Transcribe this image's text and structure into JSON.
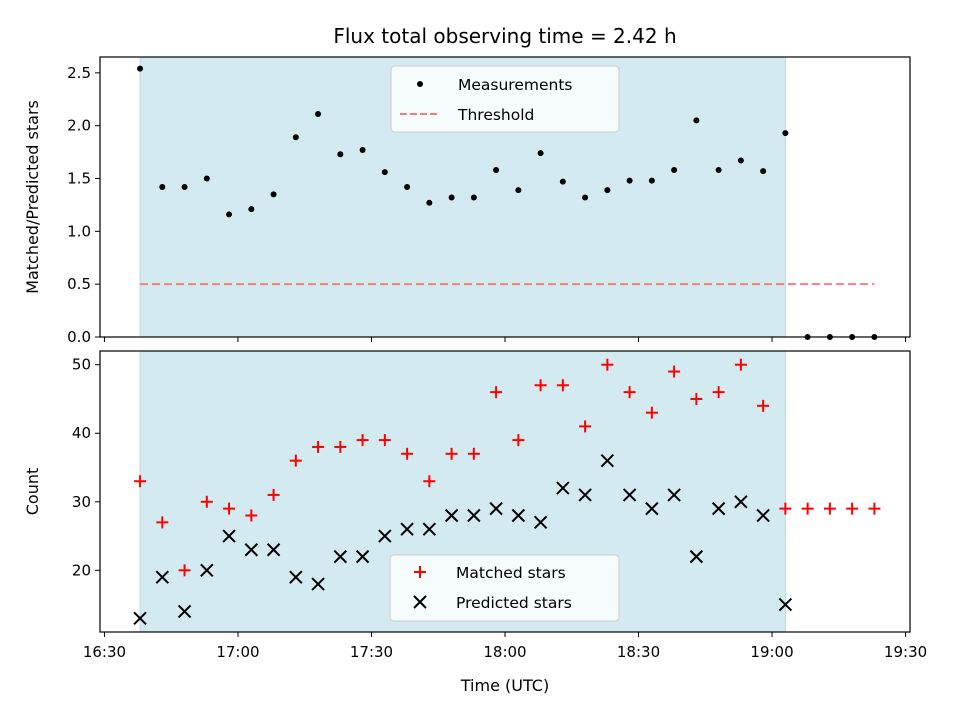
{
  "chart_data": [
    {
      "type": "scatter",
      "title": "Flux total observing time = 2.42 h",
      "xlabel": "",
      "ylabel": "Matched/Predicted stars",
      "ylim": [
        0,
        2.65
      ],
      "yticks": [
        "0.0",
        "0.5",
        "1.0",
        "1.5",
        "2.0",
        "2.5"
      ],
      "ytick_values": [
        0,
        0.5,
        1.0,
        1.5,
        2.0,
        2.5
      ],
      "xlim_minutes_since_16_00": [
        29,
        211
      ],
      "shaded_interval": [
        "16:38",
        "19:03"
      ],
      "shade_color": "#d3eaf0",
      "legend": {
        "placement": "upper-center",
        "entries": [
          "Measurements",
          "Threshold"
        ]
      },
      "series": [
        {
          "name": "Measurements",
          "marker": "dot",
          "color": "#000000",
          "x": [
            "16:38",
            "16:43",
            "16:48",
            "16:53",
            "16:58",
            "17:03",
            "17:08",
            "17:13",
            "17:18",
            "17:23",
            "17:28",
            "17:33",
            "17:38",
            "17:43",
            "17:48",
            "17:53",
            "17:58",
            "18:03",
            "18:08",
            "18:13",
            "18:18",
            "18:23",
            "18:28",
            "18:33",
            "18:38",
            "18:43",
            "18:48",
            "18:53",
            "18:58",
            "19:03",
            "19:08",
            "19:13",
            "19:18",
            "19:23"
          ],
          "values": [
            2.54,
            1.42,
            1.42,
            1.5,
            1.16,
            1.21,
            1.35,
            1.89,
            2.11,
            1.73,
            1.77,
            1.56,
            1.42,
            1.27,
            1.32,
            1.32,
            1.58,
            1.39,
            1.74,
            1.47,
            1.32,
            1.39,
            1.48,
            1.48,
            1.58,
            2.05,
            1.58,
            1.67,
            1.57,
            1.93,
            0.0,
            0.0,
            0.0,
            0.0
          ]
        },
        {
          "name": "Threshold",
          "marker": "dashed-line",
          "color": "#f08080",
          "x": [
            "16:38",
            "19:23"
          ],
          "values": [
            0.5,
            0.5
          ]
        }
      ]
    },
    {
      "type": "scatter",
      "title": "",
      "xlabel": "Time (UTC)",
      "ylabel": "Count",
      "ylim": [
        11,
        52
      ],
      "yticks": [
        "20",
        "30",
        "40",
        "50"
      ],
      "ytick_values": [
        20,
        30,
        40,
        50
      ],
      "xticks": [
        "16:30",
        "17:00",
        "17:30",
        "18:00",
        "18:30",
        "19:00",
        "19:30"
      ],
      "xtick_minutes_since_16_00": [
        30,
        60,
        90,
        120,
        150,
        180,
        210
      ],
      "xlim_minutes_since_16_00": [
        29,
        211
      ],
      "shaded_interval": [
        "16:38",
        "19:03"
      ],
      "shade_color": "#d3eaf0",
      "legend": {
        "placement": "lower-center",
        "entries": [
          "Matched stars",
          "Predicted stars"
        ]
      },
      "series": [
        {
          "name": "Matched stars",
          "marker": "plus",
          "color": "#ff0000",
          "x": [
            "16:38",
            "16:43",
            "16:48",
            "16:53",
            "16:58",
            "17:03",
            "17:08",
            "17:13",
            "17:18",
            "17:23",
            "17:28",
            "17:33",
            "17:38",
            "17:43",
            "17:48",
            "17:53",
            "17:58",
            "18:03",
            "18:08",
            "18:13",
            "18:18",
            "18:23",
            "18:28",
            "18:33",
            "18:38",
            "18:43",
            "18:48",
            "18:53",
            "18:58",
            "19:03",
            "19:08",
            "19:13",
            "19:18",
            "19:23"
          ],
          "values": [
            33,
            27,
            20,
            30,
            29,
            28,
            31,
            36,
            38,
            38,
            39,
            39,
            37,
            33,
            37,
            37,
            46,
            39,
            47,
            47,
            41,
            50,
            46,
            43,
            49,
            45,
            46,
            50,
            44,
            29,
            29,
            29,
            29,
            29
          ]
        },
        {
          "name": "Predicted stars",
          "marker": "x",
          "color": "#000000",
          "x": [
            "16:38",
            "16:43",
            "16:48",
            "16:53",
            "16:58",
            "17:03",
            "17:08",
            "17:13",
            "17:18",
            "17:23",
            "17:28",
            "17:33",
            "17:38",
            "17:43",
            "17:48",
            "17:53",
            "17:58",
            "18:03",
            "18:08",
            "18:13",
            "18:18",
            "18:23",
            "18:28",
            "18:33",
            "18:38",
            "18:43",
            "18:48",
            "18:53",
            "18:58",
            "19:03"
          ],
          "values": [
            13,
            19,
            14,
            20,
            25,
            23,
            23,
            19,
            18,
            22,
            22,
            25,
            26,
            26,
            28,
            28,
            29,
            28,
            27,
            32,
            31,
            36,
            31,
            29,
            31,
            22,
            29,
            30,
            28,
            15
          ]
        }
      ]
    }
  ]
}
